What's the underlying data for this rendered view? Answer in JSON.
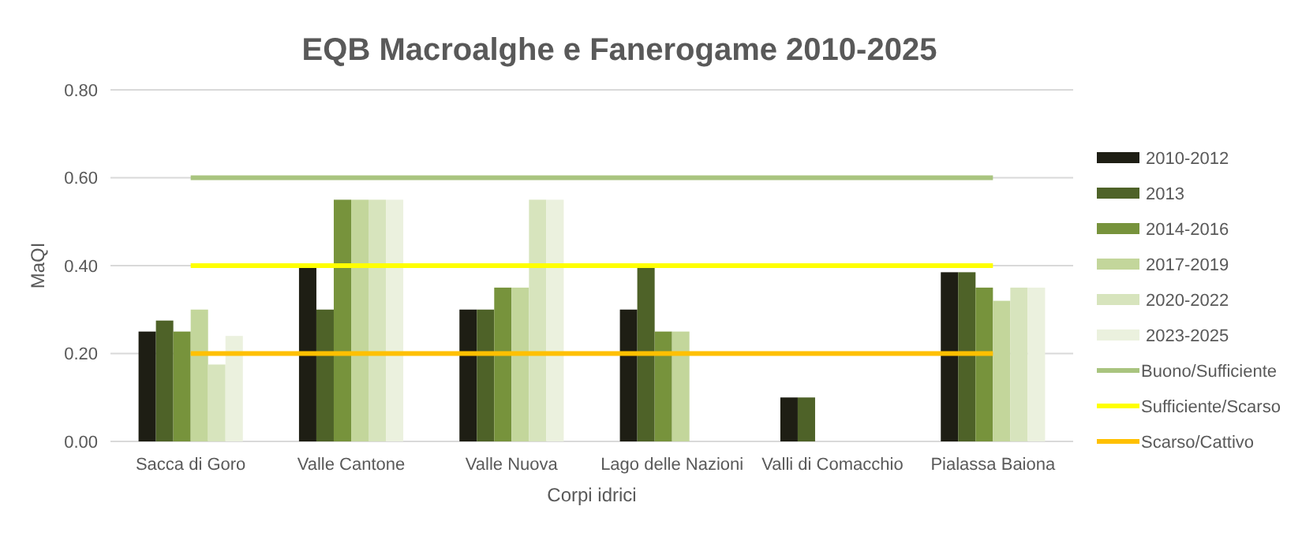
{
  "chart_data": {
    "type": "bar",
    "title": "EQB Macroalghe e Fanerogame 2010-2025",
    "xlabel": "Corpi idrici",
    "ylabel": "MaQI",
    "categories": [
      "Sacca di Goro",
      "Valle Cantone",
      "Valle Nuova",
      "Lago delle Nazioni",
      "Valli di Comacchio",
      "Pialassa Baiona"
    ],
    "series": [
      {
        "name": "2010-2012",
        "color": "#1e1e14",
        "values": [
          0.25,
          0.4,
          0.3,
          0.3,
          0.1,
          0.385
        ]
      },
      {
        "name": "2013",
        "color": "#4e6228",
        "values": [
          0.275,
          0.3,
          0.3,
          0.4,
          0.1,
          0.385
        ]
      },
      {
        "name": "2014-2016",
        "color": "#77933c",
        "values": [
          0.25,
          0.55,
          0.35,
          0.25,
          null,
          0.35
        ]
      },
      {
        "name": "2017-2019",
        "color": "#c3d69b",
        "values": [
          0.3,
          0.55,
          0.35,
          0.25,
          null,
          0.32
        ]
      },
      {
        "name": "2020-2022",
        "color": "#d7e4bd",
        "values": [
          0.175,
          0.55,
          0.55,
          null,
          null,
          0.35
        ]
      },
      {
        "name": "2023-2025",
        "color": "#ebf1de",
        "values": [
          0.24,
          0.55,
          0.55,
          null,
          null,
          0.35
        ]
      },
      {
        "name": "Buono/Sufficiente",
        "type": "line",
        "color": "#a9c47f",
        "values": [
          0.6,
          0.6,
          0.6,
          0.6,
          0.6,
          0.6
        ]
      },
      {
        "name": "Sufficiente/Scarso",
        "type": "line",
        "color": "#ffff00",
        "values": [
          0.4,
          0.4,
          0.4,
          0.4,
          0.4,
          0.4
        ]
      },
      {
        "name": "Scarso/Cattivo",
        "type": "line",
        "color": "#ffc000",
        "values": [
          0.2,
          0.2,
          0.2,
          0.2,
          0.2,
          0.2
        ]
      }
    ],
    "ylim": [
      0,
      0.8
    ],
    "yticks": [
      {
        "value": 0,
        "label": "0.00"
      },
      {
        "value": 0.2,
        "label": "0.20"
      },
      {
        "value": 0.4,
        "label": "0.40"
      },
      {
        "value": 0.6,
        "label": "0.60"
      },
      {
        "value": 0.8,
        "label": "0.80"
      }
    ],
    "grid": "y",
    "legend": "right"
  }
}
